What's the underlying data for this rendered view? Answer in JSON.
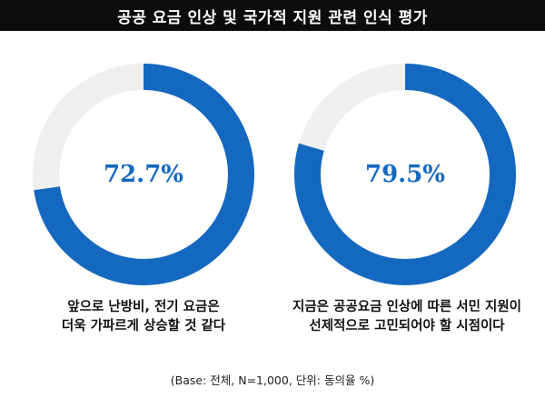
{
  "title": "공공 요금 인상 및 국가적 지원 관련 인식 평가",
  "chart_data": [
    {
      "type": "pie",
      "value": 72.7,
      "label": "72.7%",
      "caption": [
        "앞으로 난방비, 전기 요금은",
        "더욱 가파르게 상승할 것 같다"
      ],
      "colors": {
        "filled": "#1568bf",
        "rest": "#efefef"
      }
    },
    {
      "type": "pie",
      "value": 79.5,
      "label": "79.5%",
      "caption": [
        "지금은 공공요금 인상에 따른 서민 지원이",
        "선제적으로 고민되어야 할 시점이다"
      ],
      "colors": {
        "filled": "#1568bf",
        "rest": "#efefef"
      }
    }
  ],
  "note": "(Base: 전체, N=1,000, 단위: 동의율 %)"
}
